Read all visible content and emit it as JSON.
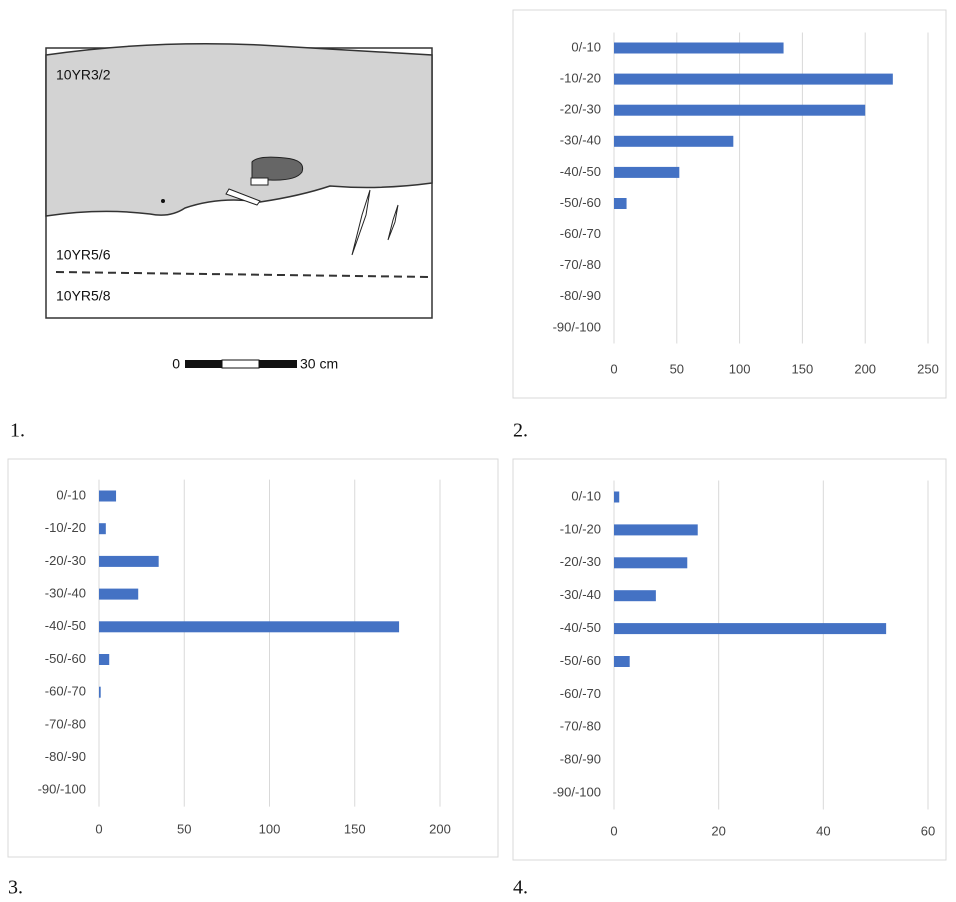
{
  "panel_labels": [
    "1.",
    "2.",
    "3.",
    "4."
  ],
  "drawing": {
    "layers": [
      "10YR3/2",
      "10YR5/6",
      "10YR5/8"
    ],
    "scale": {
      "start": "0",
      "end": "30 cm"
    }
  },
  "chart_data": [
    {
      "type": "bar",
      "orientation": "horizontal",
      "color": "#4472c4",
      "grid": true,
      "categories": [
        "0/-10",
        "-10/-20",
        "-20/-30",
        "-30/-40",
        "-40/-50",
        "-50/-60",
        "-60/-70",
        "-70/-80",
        "-80/-90",
        "-90/-100"
      ],
      "values": [
        135,
        222,
        200,
        95,
        52,
        10,
        0,
        0,
        0,
        0
      ],
      "xlim": [
        0,
        250
      ],
      "xticks": [
        0,
        50,
        100,
        150,
        200,
        250
      ]
    },
    {
      "type": "bar",
      "orientation": "horizontal",
      "color": "#4472c4",
      "grid": true,
      "categories": [
        "0/-10",
        "-10/-20",
        "-20/-30",
        "-30/-40",
        "-40/-50",
        "-50/-60",
        "-60/-70",
        "-70/-80",
        "-80/-90",
        "-90/-100"
      ],
      "values": [
        10,
        4,
        35,
        23,
        176,
        6,
        1,
        0,
        0,
        0
      ],
      "xlim": [
        0,
        200
      ],
      "xticks": [
        0,
        50,
        100,
        150,
        200
      ]
    },
    {
      "type": "bar",
      "orientation": "horizontal",
      "color": "#4472c4",
      "grid": true,
      "categories": [
        "0/-10",
        "-10/-20",
        "-20/-30",
        "-30/-40",
        "-40/-50",
        "-50/-60",
        "-60/-70",
        "-70/-80",
        "-80/-90",
        "-90/-100"
      ],
      "values": [
        1,
        16,
        14,
        8,
        52,
        3,
        0,
        0,
        0,
        0
      ],
      "xlim": [
        0,
        60
      ],
      "xticks": [
        0,
        20,
        40,
        60
      ]
    }
  ]
}
